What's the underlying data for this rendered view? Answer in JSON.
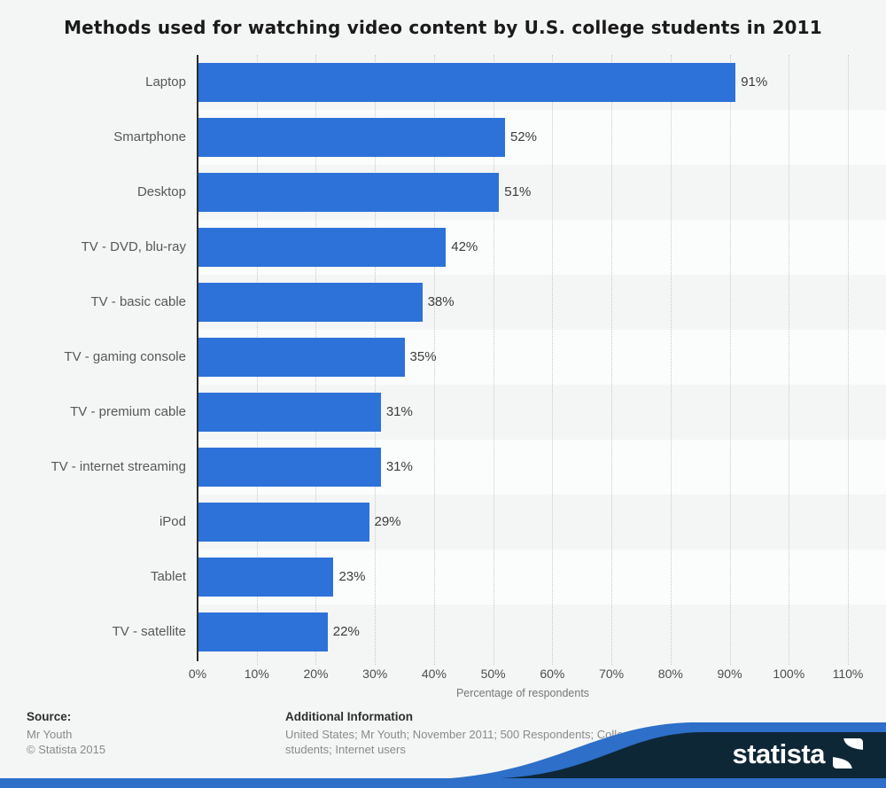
{
  "title": "Methods used for watching video content by U.S. college students in 2011",
  "chart_data": {
    "type": "bar",
    "orientation": "horizontal",
    "categories": [
      "Laptop",
      "Smartphone",
      "Desktop",
      "TV - DVD, blu-ray",
      "TV - basic cable",
      "TV - gaming console",
      "TV - premium cable",
      "TV - internet streaming",
      "iPod",
      "Tablet",
      "TV - satellite"
    ],
    "values": [
      91,
      52,
      51,
      42,
      38,
      35,
      31,
      31,
      29,
      23,
      22
    ],
    "value_suffix": "%",
    "xlabel": "Percentage of respondents",
    "ylabel": "",
    "xlim": [
      0,
      110
    ],
    "xticks": [
      0,
      10,
      20,
      30,
      40,
      50,
      60,
      70,
      80,
      90,
      100,
      110
    ],
    "xtick_suffix": "%",
    "grid": "vertical-dotted",
    "legend": "none",
    "bar_color": "#2d72d9"
  },
  "footer": {
    "source_label": "Source:",
    "source_lines": [
      "Mr Youth",
      "© Statista 2015"
    ],
    "additional_label": "Additional Information",
    "additional_text": "United States; Mr Youth; November 2011; 500 Respondents; College students; Internet users"
  },
  "branding": {
    "logo_text": "statista",
    "logo_icon": "statista-wave-icon",
    "navy": "#0e2737",
    "blue": "#2d6fc9"
  }
}
